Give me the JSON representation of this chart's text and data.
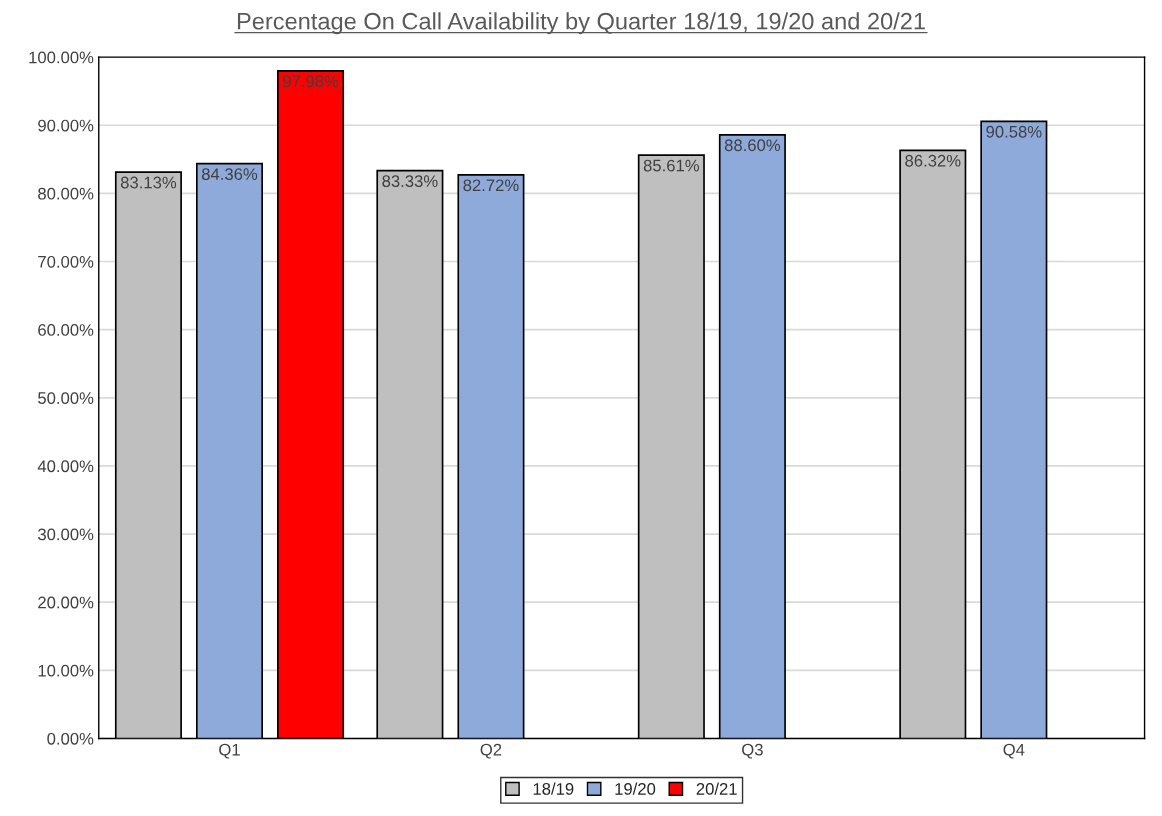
{
  "chart_data": {
    "type": "bar",
    "title": "Percentage On Call Availability by Quarter 18/19, 19/20 and 20/21",
    "categories": [
      "Q1",
      "Q2",
      "Q3",
      "Q4"
    ],
    "series": [
      {
        "name": "18/19",
        "color": "#bfbfbf",
        "values": [
          83.13,
          83.33,
          85.61,
          86.32
        ],
        "value_labels": [
          "83.13%",
          "83.33%",
          "85.61%",
          "86.32%"
        ]
      },
      {
        "name": "19/20",
        "color": "#8eaadb",
        "values": [
          84.36,
          82.72,
          88.6,
          90.58
        ],
        "value_labels": [
          "84.36%",
          "82.72%",
          "88.60%",
          "90.58%"
        ]
      },
      {
        "name": "20/21",
        "color": "#ff0000",
        "values": [
          97.98,
          null,
          null,
          null
        ],
        "value_labels": [
          "97.98%",
          null,
          null,
          null
        ]
      }
    ],
    "ylim": [
      0,
      100
    ],
    "yticks": [
      {
        "value": 0,
        "label": "0.00%"
      },
      {
        "value": 10,
        "label": "10.00%"
      },
      {
        "value": 20,
        "label": "20.00%"
      },
      {
        "value": 30,
        "label": "30.00%"
      },
      {
        "value": 40,
        "label": "40.00%"
      },
      {
        "value": 50,
        "label": "50.00%"
      },
      {
        "value": 60,
        "label": "60.00%"
      },
      {
        "value": 70,
        "label": "70.00%"
      },
      {
        "value": 80,
        "label": "80.00%"
      },
      {
        "value": 90,
        "label": "90.00%"
      },
      {
        "value": 100,
        "label": "100.00%"
      }
    ],
    "grid": "y",
    "legend": "bottom"
  }
}
